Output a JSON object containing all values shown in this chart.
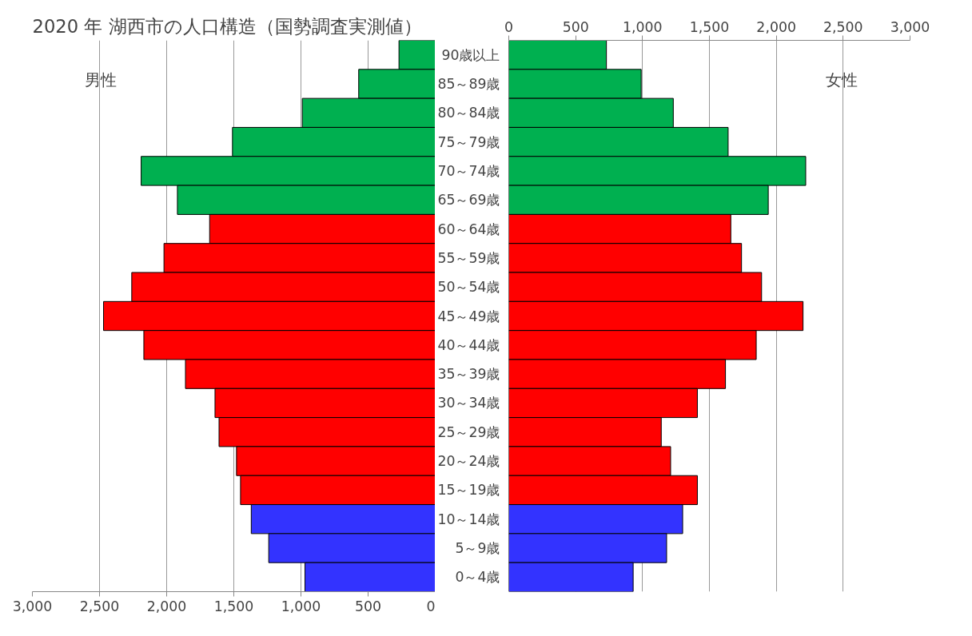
{
  "chart_data": [
    {
      "type": "bar",
      "orientation": "horizontal",
      "title": "2020 年  湖西市の人口構造（国勢調査実測値）",
      "categories": [
        null,
        null,
        null,
        null,
        null,
        null,
        null,
        null,
        null,
        null,
        null,
        null,
        null,
        null,
        null,
        null,
        null,
        null,
        null
      ],
      "values": [
        270,
        570,
        990,
        1510,
        2190,
        1920,
        1680,
        2020,
        2260,
        2470,
        2170,
        1860,
        1640,
        1610,
        1480,
        1450,
        1370,
        1240,
        970
      ],
      "colors": [
        "#00b050",
        "#00b050",
        "#00b050",
        "#00b050",
        "#00b050",
        "#00b050",
        "#ff0000",
        "#ff0000",
        "#ff0000",
        "#ff0000",
        "#ff0000",
        "#ff0000",
        "#ff0000",
        "#ff0000",
        "#ff0000",
        "#ff0000",
        "#3333ff",
        "#3333ff",
        "#3333ff"
      ],
      "xlim": [
        3000,
        0
      ],
      "xticks": [
        {
          "value": 3000,
          "label": "3,000"
        },
        {
          "value": 2500,
          "label": "2,500"
        },
        {
          "value": 2000,
          "label": "2,000"
        },
        {
          "value": 1500,
          "label": "1,500"
        },
        {
          "value": 1000,
          "label": "1,000"
        },
        500,
        0
      ],
      "grid": "x",
      "tick_labels": "x",
      "annotations": [
        "男性"
      ]
    },
    {
      "type": "bar",
      "orientation": "horizontal",
      "categories": [
        "90歳以上",
        "85～89歳",
        "80～84歳",
        "75～79歳",
        "70～74歳",
        "65～69歳",
        "60～64歳",
        "55～59歳",
        "50～54歳",
        "45～49歳",
        "40～44歳",
        "35～39歳",
        "30～34歳",
        "25～29歳",
        "20～24歳",
        "15～19歳",
        "10～14歳",
        "5～9歳",
        "0～4歳"
      ],
      "values": [
        730,
        990,
        1230,
        1640,
        2220,
        1940,
        1660,
        1740,
        1890,
        2200,
        1850,
        1620,
        1410,
        1140,
        1210,
        1410,
        1300,
        1180,
        930
      ],
      "colors": [
        "#00b050",
        "#00b050",
        "#00b050",
        "#00b050",
        "#00b050",
        "#00b050",
        "#ff0000",
        "#ff0000",
        "#ff0000",
        "#ff0000",
        "#ff0000",
        "#ff0000",
        "#ff0000",
        "#ff0000",
        "#ff0000",
        "#ff0000",
        "#3333ff",
        "#3333ff",
        "#3333ff"
      ],
      "xlim": [
        0,
        3000
      ],
      "xticks": [
        0,
        500,
        {
          "value": 1000,
          "label": "1,000"
        },
        {
          "value": 1500,
          "label": "1,500"
        },
        {
          "value": 2000,
          "label": "2,000"
        },
        {
          "value": 2500,
          "label": "2,500"
        },
        {
          "value": 3000,
          "label": "3,000"
        }
      ],
      "grid": "x",
      "annotations": [
        "女性"
      ]
    }
  ]
}
